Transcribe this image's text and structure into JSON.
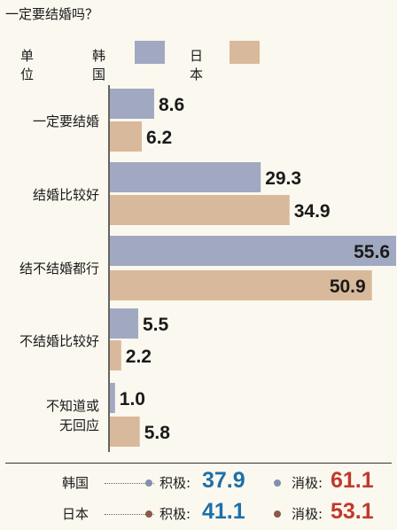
{
  "chart_data": {
    "type": "bar",
    "orientation": "horizontal",
    "title": "一定要结婚吗？",
    "legend_label": "单位",
    "categories": [
      "一定要结婚",
      "结婚比较好",
      "结不结婚都行",
      "不结婚比较好",
      "不知道或\n无回应"
    ],
    "series": [
      {
        "name": "韩国",
        "values": [
          8.6,
          29.3,
          55.6,
          5.5,
          1.0
        ],
        "color": "#a0a9c1"
      },
      {
        "name": "日本",
        "values": [
          6.2,
          34.9,
          50.9,
          2.2,
          5.8
        ],
        "color": "#d9b99b"
      }
    ],
    "xlim": [
      0,
      55.6
    ],
    "grid": false,
    "legend_position": "top"
  },
  "summary": [
    {
      "country": "韩国",
      "pos_label": "积极:",
      "pos_value": "37.9",
      "neg_label": "消极:",
      "neg_value": "61.1",
      "dot_color": "#8290ab"
    },
    {
      "country": "日本",
      "pos_label": "积极:",
      "pos_value": "41.1",
      "neg_label": "消极:",
      "neg_value": "53.1",
      "dot_color": "#8a5a4a"
    }
  ],
  "colors": {
    "pos_text": "#1e6fa8",
    "neg_text": "#c0392b"
  }
}
